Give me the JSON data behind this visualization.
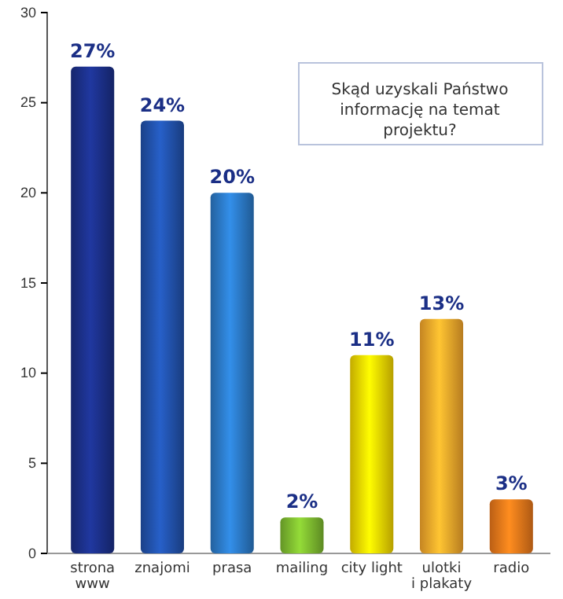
{
  "chart_data": {
    "type": "bar",
    "title": "Skąd uzyskali Państwo informację na temat projektu?",
    "categories": [
      "strona\nwww",
      "znajomi",
      "prasa",
      "mailing",
      "city light",
      "ulotki\ni plakaty",
      "radio"
    ],
    "values": [
      27,
      24,
      20,
      2,
      11,
      13,
      3
    ],
    "value_labels": [
      "27%",
      "24%",
      "20%",
      "2%",
      "11%",
      "13%",
      "3%"
    ],
    "colors": [
      "#1b2f86",
      "#2150a8",
      "#2b78c4",
      "#7cb82f",
      "#f2d400",
      "#f4a52a",
      "#e8761a"
    ],
    "ylim": [
      0,
      30
    ],
    "yticks": [
      0,
      5,
      10,
      15,
      20,
      25,
      30
    ]
  }
}
